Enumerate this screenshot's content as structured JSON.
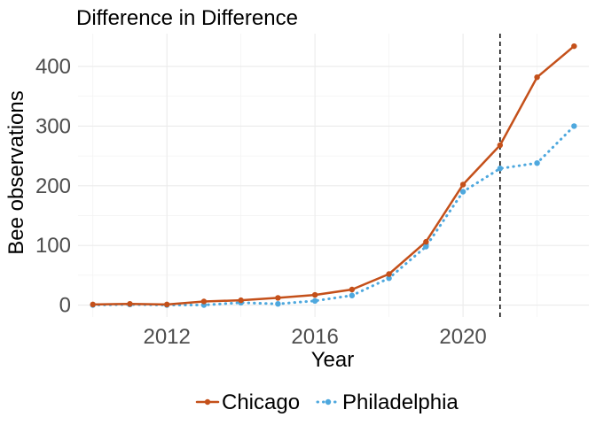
{
  "chart_data": {
    "type": "line",
    "title": "Difference in Difference",
    "xlabel": "Year",
    "ylabel": "Bee observations",
    "xlim": [
      2009.6,
      2023.4
    ],
    "ylim": [
      -20,
      455
    ],
    "x_ticks": [
      2012,
      2016,
      2020
    ],
    "x_tick_labels": [
      "2012",
      "2016",
      "2020"
    ],
    "y_ticks": [
      0,
      100,
      200,
      300,
      400
    ],
    "y_tick_labels": [
      "0",
      "100",
      "200",
      "300",
      "400"
    ],
    "grid": true,
    "legend_position": "bottom",
    "x": [
      2010,
      2011,
      2012,
      2013,
      2014,
      2015,
      2016,
      2017,
      2018,
      2019,
      2020,
      2021,
      2022,
      2023
    ],
    "series": [
      {
        "name": "Chicago",
        "color": "#c4501a",
        "line_style": "solid",
        "values": [
          1,
          2,
          1,
          6,
          8,
          12,
          17,
          26,
          52,
          106,
          202,
          268,
          382,
          434
        ]
      },
      {
        "name": "Philadelphia",
        "color": "#4ea8de",
        "line_style": "dotted",
        "values": [
          0,
          1,
          0,
          0,
          4,
          2,
          7,
          16,
          45,
          98,
          190,
          229,
          238,
          300
        ]
      }
    ],
    "annotations": [
      {
        "type": "vline",
        "x": 2021,
        "style": "dashed",
        "color": "#000000"
      }
    ]
  }
}
